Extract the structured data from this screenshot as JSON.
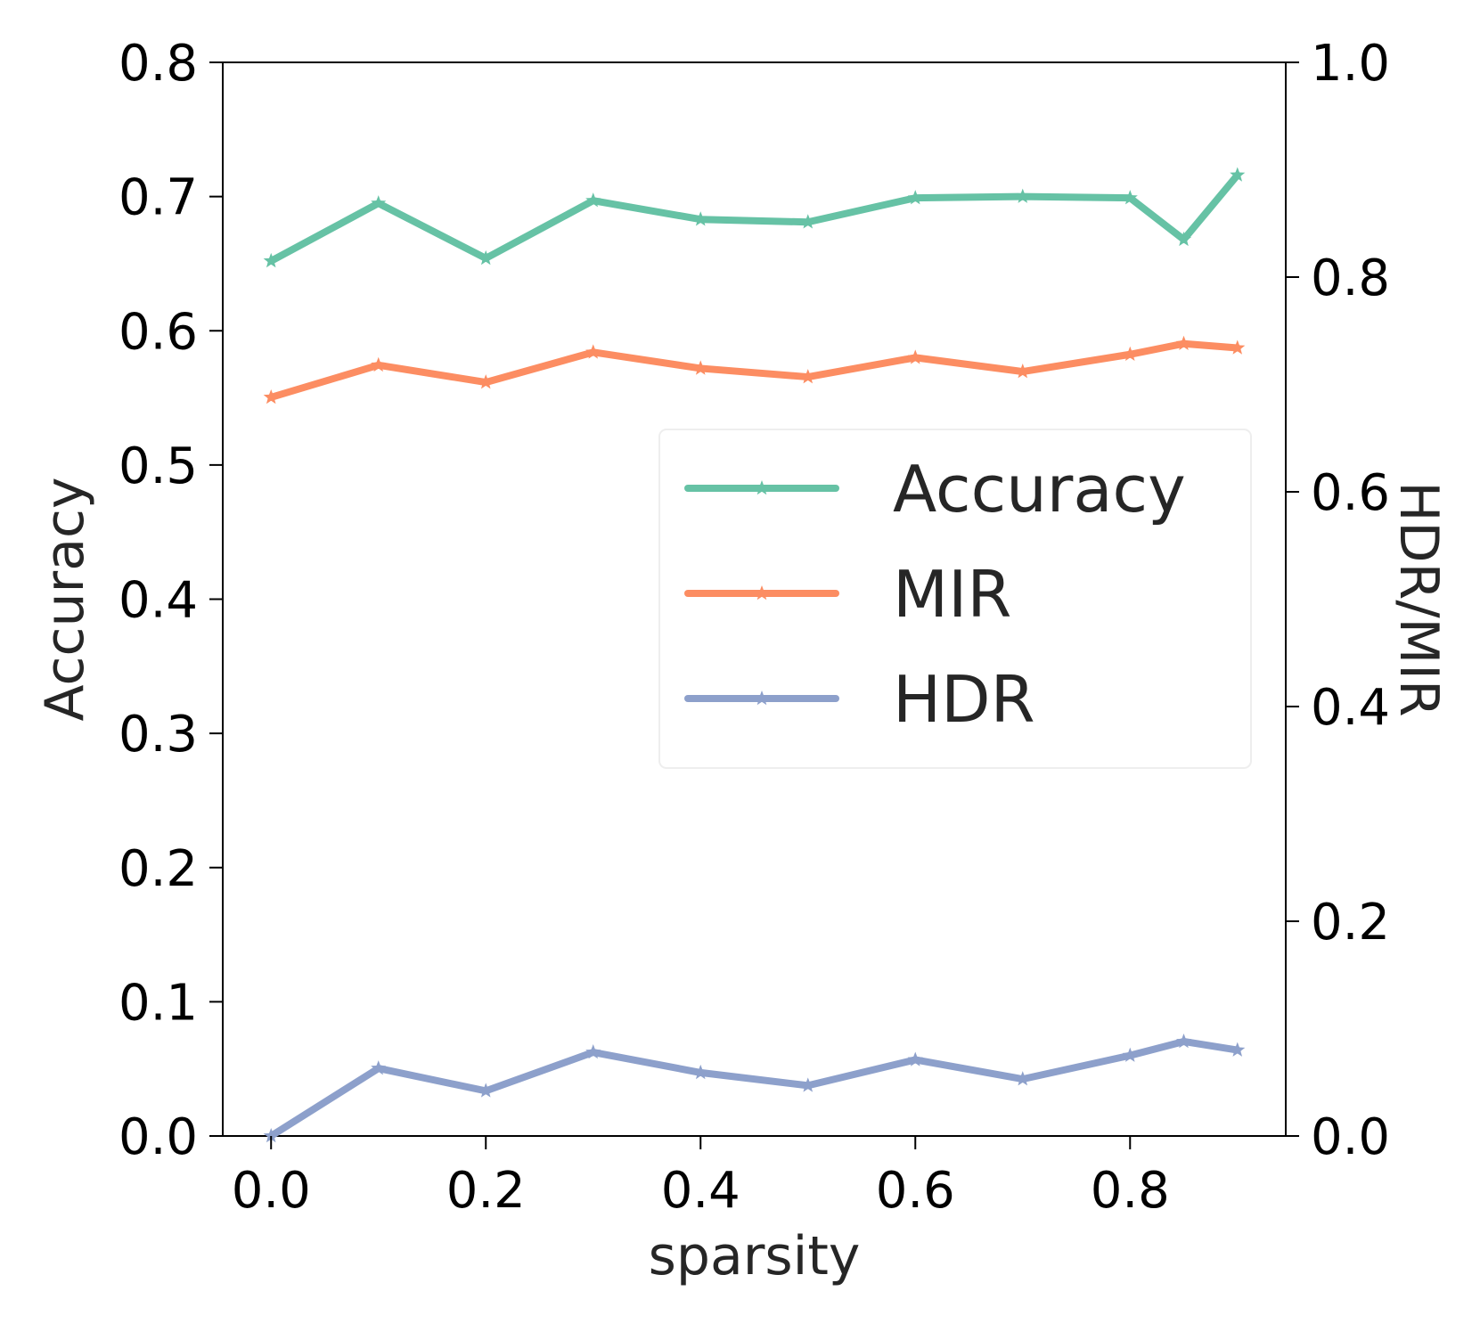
{
  "chart_data": {
    "type": "line",
    "xlabel": "sparsity",
    "ylabel": "Accuracy",
    "ylabel_right": "HDR/MIR",
    "x": [
      0.0,
      0.1,
      0.2,
      0.3,
      0.4,
      0.5,
      0.6,
      0.7,
      0.8,
      0.85,
      0.9
    ],
    "xlim": [
      -0.045,
      0.945
    ],
    "ylim": [
      0.0,
      0.8
    ],
    "ylim_right": [
      0.0,
      1.0
    ],
    "x_ticks": [
      "0.0",
      "0.2",
      "0.4",
      "0.6",
      "0.8"
    ],
    "y_ticks": [
      "0.0",
      "0.1",
      "0.2",
      "0.3",
      "0.4",
      "0.5",
      "0.6",
      "0.7",
      "0.8"
    ],
    "y_ticks_right": [
      "0.0",
      "0.2",
      "0.4",
      "0.6",
      "0.8",
      "1.0"
    ],
    "grid": false,
    "legend_position": "center-right",
    "series": [
      {
        "name": "Accuracy",
        "axis": "left",
        "color": "#66c2a5",
        "marker": "star",
        "values": [
          0.652,
          0.695,
          0.654,
          0.697,
          0.683,
          0.681,
          0.699,
          0.7,
          0.699,
          0.668,
          0.716
        ]
      },
      {
        "name": "MIR",
        "axis": "right",
        "color": "#fc8d62",
        "marker": "star",
        "values": [
          0.688,
          0.718,
          0.702,
          0.73,
          0.715,
          0.707,
          0.725,
          0.712,
          0.728,
          0.738,
          0.734
        ]
      },
      {
        "name": "HDR",
        "axis": "right",
        "color": "#8da0cb",
        "marker": "star",
        "values": [
          0.0,
          0.063,
          0.042,
          0.078,
          0.059,
          0.047,
          0.071,
          0.053,
          0.075,
          0.088,
          0.08
        ]
      }
    ]
  }
}
